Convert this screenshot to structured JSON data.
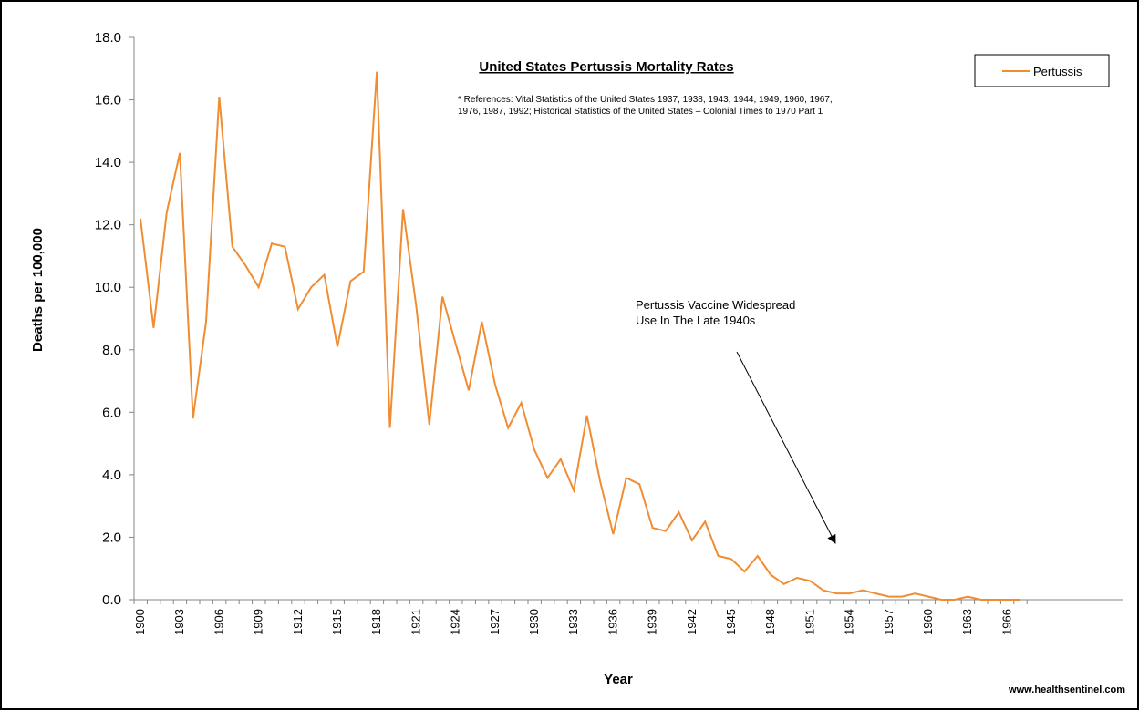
{
  "colors": {
    "series": "#f08d33",
    "axis": "#868686",
    "text": "#000000",
    "arrow": "#000000"
  },
  "chart_data": {
    "type": "line",
    "title": "United States Pertussis Mortality Rates",
    "references": [
      "* References: Vital Statistics of the United States 1937, 1938, 1943, 1944, 1949, 1960, 1967,",
      "1976, 1987, 1992; Historical Statistics of the United States – Colonial Times to 1970 Part 1"
    ],
    "xlabel": "Year",
    "ylabel": "Deaths per 100,000",
    "ylim": [
      0,
      18
    ],
    "yticks": [
      "0.0",
      "2.0",
      "4.0",
      "6.0",
      "8.0",
      "10.0",
      "12.0",
      "14.0",
      "16.0",
      "18.0"
    ],
    "xticks": [
      "1900",
      "1903",
      "1906",
      "1909",
      "1912",
      "1915",
      "1918",
      "1921",
      "1924",
      "1927",
      "1930",
      "1933",
      "1936",
      "1939",
      "1942",
      "1945",
      "1948",
      "1951",
      "1954",
      "1957",
      "1960",
      "1963",
      "1966"
    ],
    "xlim": [
      1900,
      1967
    ],
    "grid": false,
    "legend_position": "top-right",
    "series": [
      {
        "name": "Pertussis",
        "x": [
          1900,
          1901,
          1902,
          1903,
          1904,
          1905,
          1906,
          1907,
          1908,
          1909,
          1910,
          1911,
          1912,
          1913,
          1914,
          1915,
          1916,
          1917,
          1918,
          1919,
          1920,
          1921,
          1922,
          1923,
          1924,
          1925,
          1926,
          1927,
          1928,
          1929,
          1930,
          1931,
          1932,
          1933,
          1934,
          1935,
          1936,
          1937,
          1938,
          1939,
          1940,
          1941,
          1942,
          1943,
          1944,
          1945,
          1946,
          1947,
          1948,
          1949,
          1950,
          1951,
          1952,
          1953,
          1954,
          1955,
          1956,
          1957,
          1958,
          1959,
          1960,
          1961,
          1962,
          1963,
          1964,
          1965,
          1966,
          1967
        ],
        "values": [
          12.2,
          8.7,
          12.4,
          14.3,
          5.8,
          8.9,
          16.1,
          11.3,
          10.7,
          10.0,
          11.4,
          11.3,
          9.3,
          10.0,
          10.4,
          8.1,
          10.2,
          10.5,
          16.9,
          5.5,
          12.5,
          9.4,
          5.6,
          9.7,
          8.2,
          6.7,
          8.9,
          6.9,
          5.5,
          6.3,
          4.8,
          3.9,
          4.5,
          3.5,
          5.9,
          3.8,
          2.1,
          3.9,
          3.7,
          2.3,
          2.2,
          2.8,
          1.9,
          2.5,
          1.4,
          1.3,
          0.9,
          1.4,
          0.8,
          0.5,
          0.7,
          0.6,
          0.3,
          0.2,
          0.2,
          0.3,
          0.2,
          0.1,
          0.1,
          0.2,
          0.1,
          0.0,
          0.0,
          0.1,
          0.0,
          0.0,
          0.0,
          0.0
        ]
      }
    ],
    "annotation": {
      "lines": [
        "Pertussis  Vaccine Widespread",
        "Use In The  Late  1940s"
      ],
      "points_to_year": 1947
    }
  },
  "credit": "www.healthsentinel.com"
}
